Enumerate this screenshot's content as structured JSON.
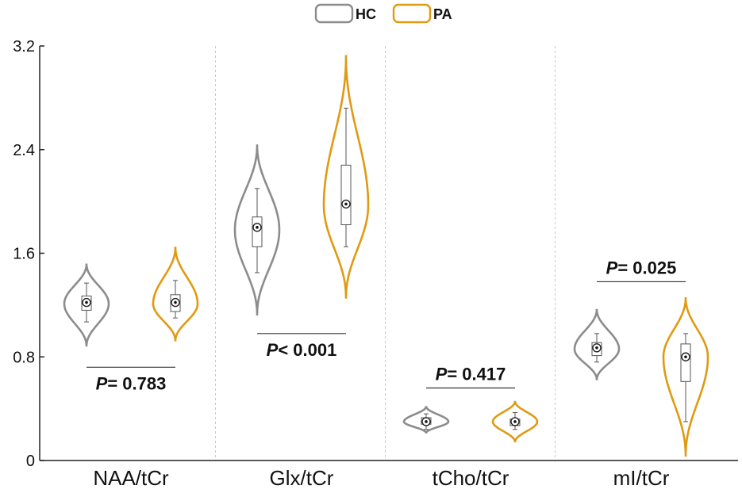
{
  "chart_data": {
    "type": "violin",
    "categories": [
      "NAA/tCr",
      "Glx/tCr",
      "tCho/tCr",
      "mI/tCr"
    ],
    "ylim": [
      0,
      3.2
    ],
    "yticks": [
      0,
      0.8,
      1.6,
      2.4,
      3.2
    ],
    "ytick_labels": [
      "0",
      "0.8",
      "1.6",
      "2.4",
      "3.2"
    ],
    "legend_position": "top-center",
    "series": [
      {
        "name": "HC",
        "color": "#8c8c8c",
        "groups": [
          {
            "category": "NAA/tCr",
            "min_violin": 0.88,
            "max_violin": 1.52,
            "whisker_low": 1.07,
            "q1": 1.16,
            "median": 1.21,
            "mean": 1.22,
            "q3": 1.27,
            "whisker_high": 1.37
          },
          {
            "category": "Glx/tCr",
            "min_violin": 1.12,
            "max_violin": 2.44,
            "whisker_low": 1.45,
            "q1": 1.65,
            "median": 1.78,
            "mean": 1.8,
            "q3": 1.88,
            "whisker_high": 2.1
          },
          {
            "category": "tCho/tCr",
            "min_violin": 0.21,
            "max_violin": 0.42,
            "whisker_low": 0.24,
            "q1": 0.28,
            "median": 0.3,
            "mean": 0.3,
            "q3": 0.33,
            "whisker_high": 0.36
          },
          {
            "category": "mI/tCr",
            "min_violin": 0.62,
            "max_violin": 1.17,
            "whisker_low": 0.76,
            "q1": 0.81,
            "median": 0.86,
            "mean": 0.87,
            "q3": 0.91,
            "whisker_high": 0.98
          }
        ]
      },
      {
        "name": "PA",
        "color": "#e09a12",
        "groups": [
          {
            "category": "NAA/tCr",
            "min_violin": 0.92,
            "max_violin": 1.65,
            "whisker_low": 1.1,
            "q1": 1.15,
            "median": 1.21,
            "mean": 1.22,
            "q3": 1.28,
            "whisker_high": 1.39
          },
          {
            "category": "Glx/tCr",
            "min_violin": 1.25,
            "max_violin": 3.13,
            "whisker_low": 1.65,
            "q1": 1.82,
            "median": 1.97,
            "mean": 1.98,
            "q3": 2.28,
            "whisker_high": 2.72
          },
          {
            "category": "tCho/tCr",
            "min_violin": 0.14,
            "max_violin": 0.46,
            "whisker_low": 0.24,
            "q1": 0.27,
            "median": 0.3,
            "mean": 0.3,
            "q3": 0.32,
            "whisker_high": 0.37
          },
          {
            "category": "mI/tCr",
            "min_violin": 0.03,
            "max_violin": 1.26,
            "whisker_low": 0.3,
            "q1": 0.61,
            "median": 0.8,
            "mean": 0.8,
            "q3": 0.9,
            "whisker_high": 0.98
          }
        ]
      }
    ],
    "annotations": [
      {
        "category": "NAA/tCr",
        "y": 0.72,
        "label_P": "P",
        "label_rest": "= 0.783",
        "text_below": true
      },
      {
        "category": "Glx/tCr",
        "y": 0.98,
        "label_P": "P",
        "label_rest": "< 0.001",
        "text_below": true
      },
      {
        "category": "tCho/tCr",
        "y": 0.56,
        "label_P": "P",
        "label_rest": "= 0.417",
        "text_below": false
      },
      {
        "category": "mI/tCr",
        "y": 1.38,
        "label_P": "P",
        "label_rest": "= 0.025",
        "text_below": false
      }
    ]
  }
}
